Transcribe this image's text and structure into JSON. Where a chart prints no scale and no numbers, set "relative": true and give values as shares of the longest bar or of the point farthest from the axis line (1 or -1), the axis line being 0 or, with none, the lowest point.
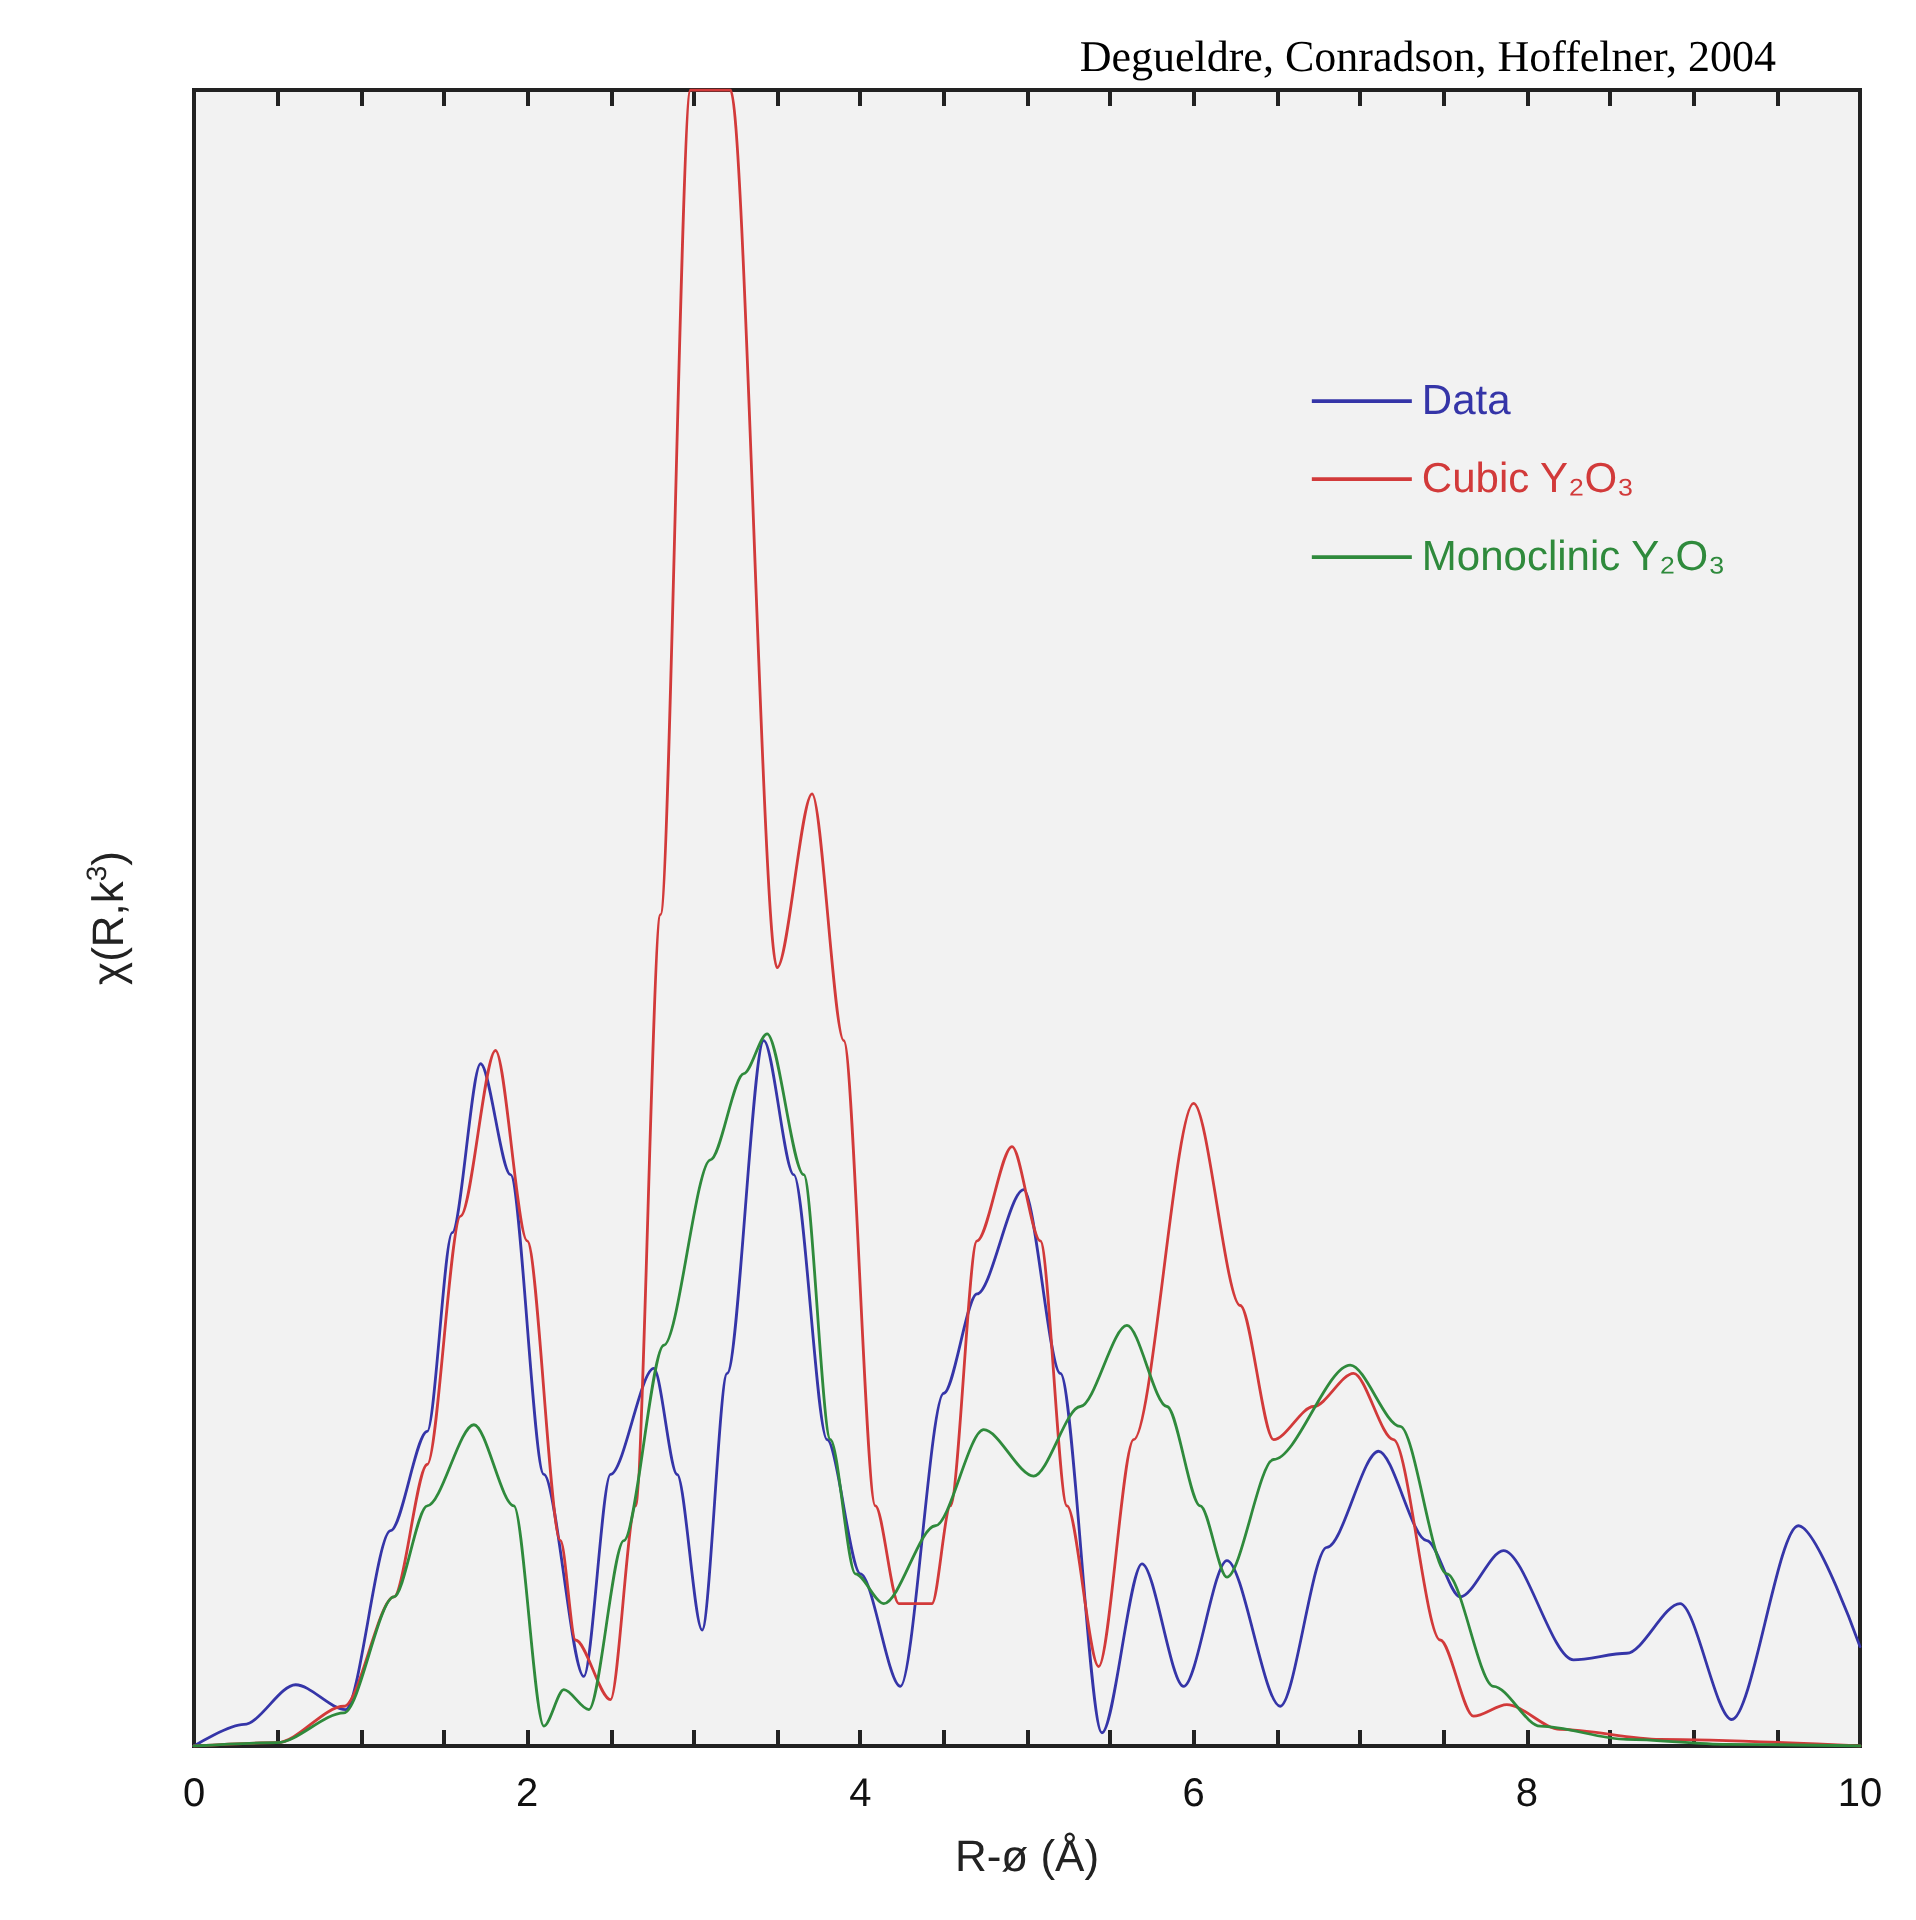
{
  "chart_data": {
    "type": "line",
    "relative": true,
    "xlabel": "R-ø (Å)",
    "ylabel": "χ(R,k$^{3}$)",
    "annotations": [
      "Degueldre, Conradson, Hoffelner, 2004"
    ],
    "xlim": [
      0,
      10
    ],
    "xticks": [
      0,
      {
        "value": 0.5,
        "label": null
      },
      {
        "value": 1,
        "label": null
      },
      {
        "value": 1.5,
        "label": null
      },
      2,
      {
        "value": 2.5,
        "label": null
      },
      {
        "value": 3,
        "label": null
      },
      {
        "value": 3.5,
        "label": null
      },
      4,
      {
        "value": 4.5,
        "label": null
      },
      {
        "value": 5,
        "label": null
      },
      {
        "value": 5.5,
        "label": null
      },
      6,
      {
        "value": 6.5,
        "label": null
      },
      {
        "value": 7,
        "label": null
      },
      {
        "value": 7.5,
        "label": null
      },
      8,
      {
        "value": 8.5,
        "label": null
      },
      {
        "value": 9,
        "label": null
      },
      {
        "value": 9.5,
        "label": null
      },
      10
    ],
    "grid": false,
    "legend": "top right",
    "marker": "none",
    "line_style": "solid",
    "series": [
      {
        "name": "Data",
        "color": "#3535a8",
        "x": [
          0,
          0.3,
          0.61,
          0.91,
          1.18,
          1.4,
          1.55,
          1.72,
          1.9,
          2.1,
          2.34,
          2.5,
          2.76,
          2.9,
          3.05,
          3.2,
          3.42,
          3.6,
          3.8,
          4.0,
          4.24,
          4.5,
          4.7,
          4.98,
          5.2,
          5.45,
          5.69,
          5.94,
          6.2,
          6.52,
          6.8,
          7.11,
          7.4,
          7.6,
          7.86,
          8.28,
          8.6,
          8.92,
          9.23,
          9.63,
          10
        ],
        "values": [
          0,
          0.013,
          0.037,
          0.022,
          0.13,
          0.19,
          0.31,
          0.412,
          0.345,
          0.164,
          0.042,
          0.164,
          0.228,
          0.164,
          0.07,
          0.225,
          0.426,
          0.345,
          0.185,
          0.104,
          0.036,
          0.213,
          0.273,
          0.336,
          0.225,
          0.008,
          0.11,
          0.036,
          0.112,
          0.024,
          0.12,
          0.178,
          0.124,
          0.09,
          0.118,
          0.052,
          0.056,
          0.086,
          0.016,
          0.133,
          0.06
        ]
      },
      {
        "name": "Cubic Y₂O₃",
        "color": "#d23a3a",
        "x": [
          0,
          0.5,
          0.9,
          1.2,
          1.4,
          1.6,
          1.81,
          2.0,
          2.2,
          2.29,
          2.5,
          2.65,
          2.8,
          2.98,
          3.1,
          3.22,
          3.5,
          3.71,
          3.9,
          4.09,
          4.23,
          4.43,
          4.54,
          4.7,
          4.91,
          5.08,
          5.24,
          5.43,
          5.64,
          6.0,
          6.28,
          6.48,
          6.72,
          6.96,
          7.2,
          7.48,
          7.68,
          7.88,
          8.2,
          8.8,
          10
        ],
        "values": [
          0,
          0.002,
          0.024,
          0.09,
          0.17,
          0.32,
          0.42,
          0.305,
          0.124,
          0.064,
          0.028,
          0.145,
          0.502,
          1,
          1,
          1,
          0.47,
          0.575,
          0.426,
          0.145,
          0.086,
          0.086,
          0.145,
          0.305,
          0.362,
          0.305,
          0.145,
          0.048,
          0.185,
          0.388,
          0.266,
          0.185,
          0.205,
          0.225,
          0.185,
          0.064,
          0.018,
          0.025,
          0.01,
          0.004,
          0
        ]
      },
      {
        "name": "Monoclinic Y₂O₃",
        "color": "#2f8a3c",
        "x": [
          0,
          0.5,
          0.9,
          1.2,
          1.4,
          1.68,
          1.92,
          2.1,
          2.22,
          2.37,
          2.58,
          2.82,
          3.1,
          3.3,
          3.44,
          3.66,
          3.82,
          3.97,
          4.14,
          4.45,
          4.74,
          5.04,
          5.32,
          5.6,
          5.84,
          6.04,
          6.2,
          6.48,
          6.94,
          7.24,
          7.52,
          7.8,
          8.08,
          8.6,
          9.2,
          10
        ],
        "values": [
          0,
          0.002,
          0.02,
          0.09,
          0.145,
          0.194,
          0.145,
          0.012,
          0.034,
          0.022,
          0.124,
          0.242,
          0.354,
          0.406,
          0.43,
          0.345,
          0.185,
          0.104,
          0.086,
          0.133,
          0.191,
          0.163,
          0.205,
          0.254,
          0.205,
          0.145,
          0.102,
          0.173,
          0.23,
          0.193,
          0.104,
          0.036,
          0.012,
          0.004,
          0.001,
          0
        ]
      }
    ]
  }
}
